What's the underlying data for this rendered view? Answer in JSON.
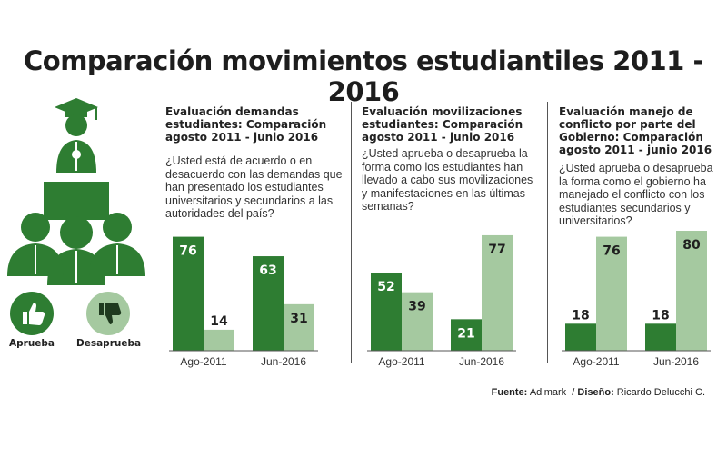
{
  "title": "Comparación movimientos estudiantiles 2011 - 2016",
  "colors": {
    "dark": "#2e7d32",
    "light": "#a5c9a0",
    "dark_text": "#ffffff",
    "light_text": "#1f1f1f"
  },
  "legend": {
    "approve_label": "Aprueba",
    "disapprove_label": "Desaprueba",
    "approve_icon": "thumbs-up-icon",
    "disapprove_icon": "thumbs-down-icon",
    "illustration_icon": "teacher-students-icon"
  },
  "panels": [
    {
      "heading": "Evaluación demandas estudiantes: Comparación agosto 2011 - junio 2016",
      "question": "¿Usted está de acuerdo o en desacuerdo con las demandas que han presentado los estudiantes universitarios y secundarios a las autoridades del país?"
    },
    {
      "heading": "Evaluación movilizaciones estudiantes: Comparación agosto 2011 - junio 2016",
      "question": "¿Usted aprueba o desaprueba la forma como los estudiantes han llevado a cabo sus movilizaciones y manifestaciones en las últimas semanas?"
    },
    {
      "heading": "Evaluación manejo de conflicto por parte del Gobierno: Comparación agosto 2011 - junio 2016",
      "question": "¿Usted aprueba o desaprueba la forma como el gobierno ha manejado el conflicto con los estudiantes secundarios y universitarios?"
    }
  ],
  "chart_data": [
    {
      "type": "bar",
      "categories": [
        "Ago-2011",
        "Jun-2016"
      ],
      "series": [
        {
          "name": "Aprueba",
          "values": [
            76,
            63
          ]
        },
        {
          "name": "Desaprueba",
          "values": [
            14,
            31
          ]
        }
      ]
    },
    {
      "type": "bar",
      "categories": [
        "Ago-2011",
        "Jun-2016"
      ],
      "series": [
        {
          "name": "Aprueba",
          "values": [
            52,
            21
          ]
        },
        {
          "name": "Desaprueba",
          "values": [
            39,
            77
          ]
        }
      ]
    },
    {
      "type": "bar",
      "categories": [
        "Ago-2011",
        "Jun-2016"
      ],
      "series": [
        {
          "name": "Aprueba",
          "values": [
            18,
            18
          ]
        },
        {
          "name": "Desaprueba",
          "values": [
            76,
            80
          ]
        }
      ]
    }
  ],
  "footer": {
    "source_label": "Fuente:",
    "source": "Adimark",
    "design_label": "Diseño:",
    "design": "Ricardo Delucchi C."
  }
}
